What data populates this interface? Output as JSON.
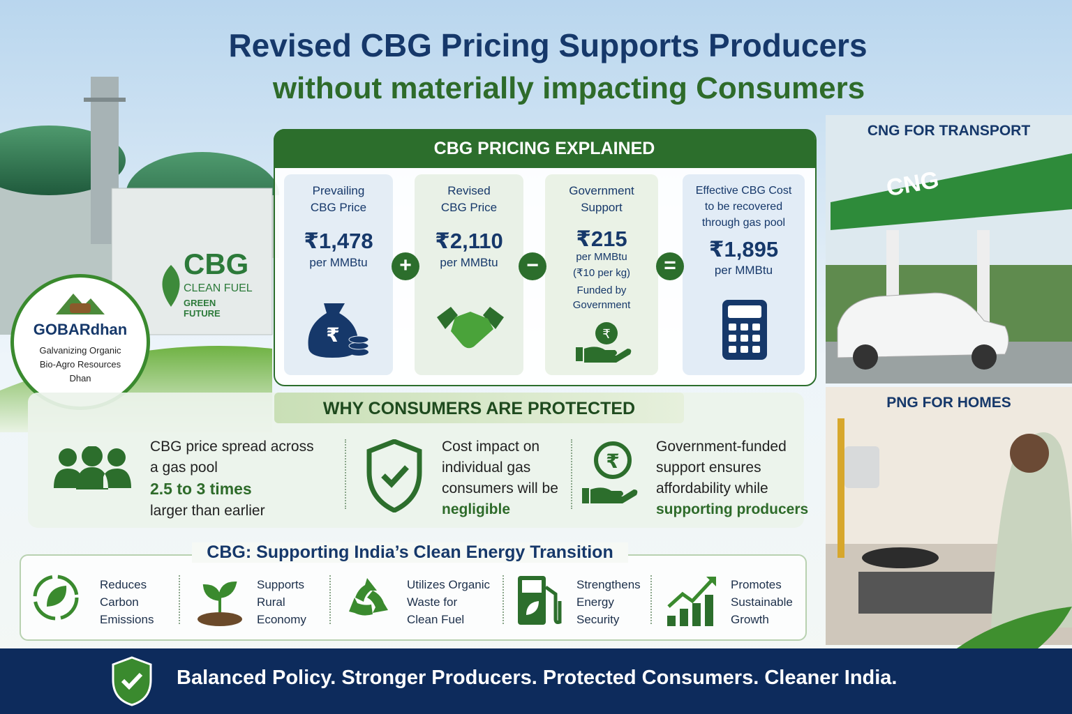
{
  "header": {
    "title": "Revised CBG Pricing Supports Producers",
    "subtitle": "without materially impacting Consumers"
  },
  "pricing": {
    "heading": "CBG PRICING EXPLAINED",
    "cards": [
      {
        "label": "Prevailing\nCBG Price",
        "price": "₹1,478",
        "unit": "per MMBtu"
      },
      {
        "label": "Revised\nCBG Price",
        "price": "₹2,110",
        "unit": "per MMBtu"
      },
      {
        "label": "Government\nSupport",
        "price": "₹215",
        "unit": "per MMBtu",
        "detail": "(₹10 per kg)",
        "note": "Funded by\nGovernment"
      },
      {
        "label": "Effective CBG Cost\nto be recovered\nthrough gas pool",
        "price": "₹1,895",
        "unit": "per MMBtu"
      }
    ],
    "operators": [
      "+",
      "−",
      "="
    ]
  },
  "protection": {
    "heading": "WHY CONSUMERS ARE PROTECTED",
    "items": [
      {
        "text": "CBG price spread across\na gas pool",
        "highlight": "2.5 to 3 times",
        "tail": "larger than earlier"
      },
      {
        "text": "Cost impact on\nindividual gas\nconsumers will be",
        "highlight": "negligible"
      },
      {
        "text": "Government-funded\nsupport ensures\naffordability while",
        "highlight": "supporting producers"
      }
    ]
  },
  "transition": {
    "heading": "CBG: Supporting India’s Clean Energy Transition",
    "items": [
      "Reduces\nCarbon\nEmissions",
      "Supports\nRural\nEconomy",
      "Utilizes Organic\nWaste for\nClean Fuel",
      "Strengthens\nEnergy\nSecurity",
      "Promotes\nSustainable\nGrowth"
    ]
  },
  "footer": {
    "text": "Balanced Policy. Stronger Producers. Protected Consumers. Cleaner India."
  },
  "side": {
    "transport_label": "CNG FOR TRANSPORT",
    "station_sign": "CNG",
    "homes_label": "PNG FOR HOMES"
  },
  "plant": {
    "sign": "CBG",
    "sign_line1": "CLEAN FUEL",
    "sign_line2": "GREEN FUTURE"
  },
  "badge": {
    "name": "GOBARdhan",
    "expansion": "Galvanizing Organic\nBio-Agro Resources\nDhan"
  }
}
